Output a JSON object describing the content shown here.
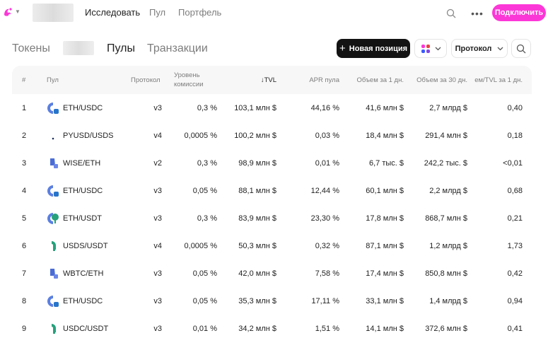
{
  "nav": {
    "links": [
      "Исследовать",
      "Пул",
      "Портфель"
    ],
    "connect_label": "Подключить"
  },
  "tabs": [
    "Токены",
    "Пулы",
    "Транзакции"
  ],
  "actions": {
    "new_position_label": "Новая позиция",
    "protocol_label": "Протокол"
  },
  "colors": {
    "accent": "#fc37d7",
    "dark_button": "#131313"
  },
  "table": {
    "headers": {
      "num": "#",
      "pool": "Пул",
      "protocol": "Протокол",
      "fee_line1": "Уровень",
      "fee_line2": "комиссии",
      "tvl": "↓TVL",
      "apr": "APR пула",
      "vol1": "Объем за 1 дн.",
      "vol30": "Объем за 30 дн.",
      "ratio": "ем/TVL за 1 дн."
    },
    "rows": [
      {
        "num": "1",
        "pair": "ETH/USDC",
        "protocol": "v3",
        "fee": "0,3 %",
        "tvl": "103,1 млн $",
        "apr": "44,16 %",
        "vol1": "41,6 млн $",
        "vol30": "2,7 млрд $",
        "ratio": "0,40",
        "icon": "eth-usdc-pair-icon"
      },
      {
        "num": "2",
        "pair": "PYUSD/USDS",
        "protocol": "v4",
        "fee": "0,0005 %",
        "tvl": "100,2 млн $",
        "apr": "0,03 %",
        "vol1": "18,4 млн $",
        "vol30": "291,4 млн $",
        "ratio": "0,18",
        "icon": "pyusd-usds-pair-icon"
      },
      {
        "num": "3",
        "pair": "WISE/ETH",
        "protocol": "v2",
        "fee": "0,3 %",
        "tvl": "98,9 млн $",
        "apr": "0,01 %",
        "vol1": "6,7 тыс. $",
        "vol30": "242,2 тыс. $",
        "ratio": "<0,01",
        "icon": "wise-eth-pair-icon"
      },
      {
        "num": "4",
        "pair": "ETH/USDC",
        "protocol": "v3",
        "fee": "0,05 %",
        "tvl": "88,1 млн $",
        "apr": "12,44 %",
        "vol1": "60,1 млн $",
        "vol30": "2,2 млрд $",
        "ratio": "0,68",
        "icon": "eth-usdc-pair-icon"
      },
      {
        "num": "5",
        "pair": "ETH/USDT",
        "protocol": "v3",
        "fee": "0,3 %",
        "tvl": "83,9 млн $",
        "apr": "23,30 %",
        "vol1": "17,8 млн $",
        "vol30": "868,7 млн $",
        "ratio": "0,21",
        "icon": "eth-usdt-pair-icon"
      },
      {
        "num": "6",
        "pair": "USDS/USDT",
        "protocol": "v4",
        "fee": "0,0005 %",
        "tvl": "50,3 млн $",
        "apr": "0,32 %",
        "vol1": "87,1 млн $",
        "vol30": "1,2 млрд $",
        "ratio": "1,73",
        "icon": "usds-usdt-pair-icon"
      },
      {
        "num": "7",
        "pair": "WBTC/ETH",
        "protocol": "v3",
        "fee": "0,05 %",
        "tvl": "42,0 млн $",
        "apr": "7,58 %",
        "vol1": "17,4 млн $",
        "vol30": "850,8 млн $",
        "ratio": "0,42",
        "icon": "wbtc-eth-pair-icon"
      },
      {
        "num": "8",
        "pair": "ETH/USDC",
        "protocol": "v3",
        "fee": "0,05 %",
        "tvl": "35,3 млн $",
        "apr": "17,11 %",
        "vol1": "33,1 млн $",
        "vol30": "1,4 млрд $",
        "ratio": "0,94",
        "icon": "eth-usdc-pair-icon"
      },
      {
        "num": "9",
        "pair": "USDC/USDT",
        "protocol": "v3",
        "fee": "0,01 %",
        "tvl": "34,2 млн $",
        "apr": "1,51 %",
        "vol1": "14,1 млн $",
        "vol30": "372,6 млн $",
        "ratio": "0,41",
        "icon": "usdc-usdt-pair-icon"
      }
    ]
  }
}
